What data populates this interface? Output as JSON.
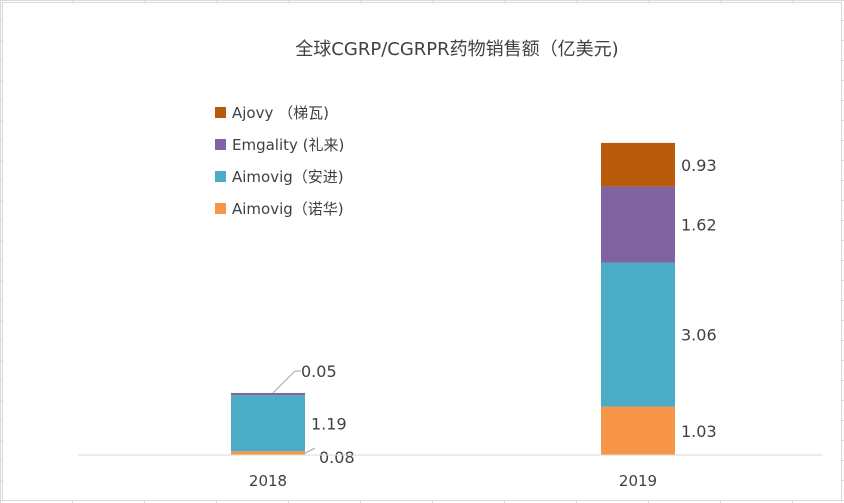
{
  "chart_data": {
    "type": "bar",
    "stacked": true,
    "title": "全球CGRP/CGRPR药物销售额（亿美元)",
    "categories": [
      "2018",
      "2019"
    ],
    "series": [
      {
        "name": "Aimovig（诺华)",
        "values": [
          0.08,
          1.03
        ],
        "color": "#f79646"
      },
      {
        "name": "Aimovig（安进)",
        "values": [
          1.19,
          3.06
        ],
        "color": "#4bacc6"
      },
      {
        "name": "Emgality (礼来)",
        "values": [
          0.05,
          1.62
        ],
        "color": "#8064a2"
      },
      {
        "name": "Ajovy （梯瓦)",
        "values": [
          null,
          0.93
        ],
        "color": "#b85a0a"
      }
    ],
    "data_labels": [
      [
        "0.08",
        "1.19",
        "0.05",
        ""
      ],
      [
        "1.03",
        "3.06",
        "1.62",
        "0.93"
      ]
    ],
    "legend_position": "top-left",
    "grid": false
  }
}
